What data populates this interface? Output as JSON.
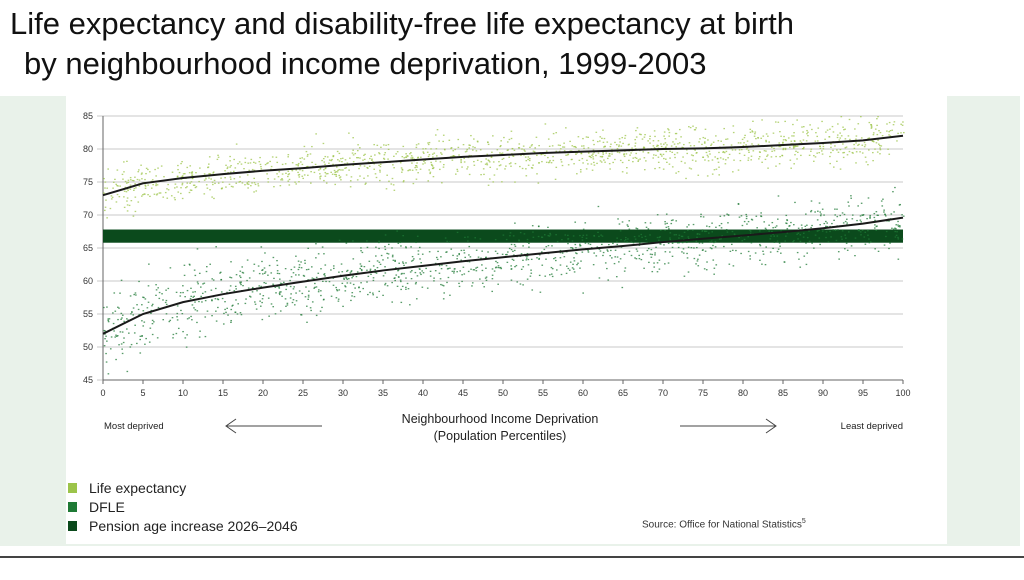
{
  "title_line1": "Life expectancy and disability-free life expectancy at birth",
  "title_line2": "by neighbourhood income deprivation, 1999-2003",
  "chart_data": {
    "type": "scatter",
    "title": "Life expectancy and disability-free life expectancy at birth by neighbourhood income deprivation, 1999-2003",
    "xlabel": "Neighbourhood Income Deprivation",
    "xlabel2": "(Population Percentiles)",
    "left_annotation": "Most deprived",
    "right_annotation": "Least deprived",
    "xlim": [
      0,
      100
    ],
    "ylim": [
      45,
      85
    ],
    "xticks": [
      "0",
      "5",
      "10",
      "15",
      "20",
      "25",
      "30",
      "35",
      "40",
      "45",
      "50",
      "55",
      "60",
      "65",
      "70",
      "75",
      "80",
      "85",
      "90",
      "95",
      "100"
    ],
    "yticks": [
      "45",
      "50",
      "55",
      "60",
      "65",
      "70",
      "75",
      "80",
      "85"
    ],
    "grid": true,
    "series": [
      {
        "name": "Life expectancy",
        "color": "#9cc44a",
        "trend_x": [
          0,
          5,
          10,
          15,
          20,
          25,
          30,
          35,
          40,
          45,
          50,
          55,
          60,
          65,
          70,
          75,
          80,
          85,
          90,
          95,
          100
        ],
        "trend_y": [
          73,
          74.8,
          75.6,
          76.2,
          76.7,
          77.1,
          77.6,
          78,
          78.4,
          78.8,
          79.1,
          79.4,
          79.6,
          79.8,
          80,
          80.1,
          80.3,
          80.6,
          80.9,
          81.3,
          82
        ],
        "spread": 1.6
      },
      {
        "name": "DFLE",
        "color": "#1f7a35",
        "trend_x": [
          0,
          5,
          10,
          15,
          20,
          25,
          30,
          35,
          40,
          45,
          50,
          55,
          60,
          65,
          70,
          75,
          80,
          85,
          90,
          95,
          100
        ],
        "trend_y": [
          52,
          55,
          56.8,
          58,
          59,
          59.9,
          60.8,
          61.6,
          62.3,
          63,
          63.6,
          64.2,
          64.8,
          65.3,
          65.9,
          66.4,
          66.9,
          67.4,
          68,
          68.7,
          69.6
        ],
        "spread": 2.3
      },
      {
        "name": "Pension age increase 2026–2046",
        "color": "#0b4a1c",
        "band": [
          65.8,
          67.8
        ]
      }
    ],
    "legend_position": "bottom-left",
    "source": "Source: Office for National Statistics",
    "source_note": "5"
  }
}
